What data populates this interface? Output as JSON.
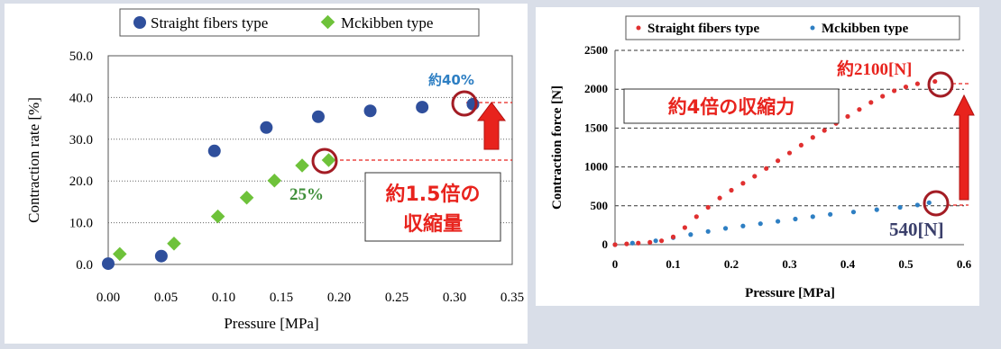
{
  "colors": {
    "left_series1": "#2f4f9c",
    "left_series2": "#6ec23a",
    "right_series1": "#e03030",
    "right_series2": "#2e7fc3",
    "highlight_ring": "#a31c24",
    "arrow": "#e8231d",
    "callout_text": "#e8231d",
    "callout_blue": "#2e7fc3",
    "callout_green": "#3f8f3a",
    "callout_navy": "#3a3f6b"
  },
  "chart_data": [
    {
      "type": "scatter",
      "xlabel": "Pressure [MPa]",
      "ylabel": "Contraction rate [%]",
      "xlim": [
        0,
        0.35
      ],
      "ylim": [
        0,
        50
      ],
      "xticks": [
        "0.00",
        "0.05",
        "0.10",
        "0.15",
        "0.20",
        "0.25",
        "0.30",
        "0.35"
      ],
      "yticks": [
        "0.0",
        "10.0",
        "20.0",
        "30.0",
        "40.0",
        "50.0"
      ],
      "grid": "horizontal dotted",
      "legend": "top",
      "series": [
        {
          "name": "Straight fibers type",
          "marker": "circle",
          "points": [
            [
              0.0,
              0.2
            ],
            [
              0.046,
              2.0
            ],
            [
              0.092,
              27.2
            ],
            [
              0.137,
              32.8
            ],
            [
              0.182,
              35.4
            ],
            [
              0.227,
              36.8
            ],
            [
              0.272,
              37.7
            ],
            [
              0.316,
              38.4
            ]
          ]
        },
        {
          "name": "Mckibben type",
          "marker": "diamond",
          "points": [
            [
              0.01,
              2.5
            ],
            [
              0.057,
              5.0
            ],
            [
              0.095,
              11.5
            ],
            [
              0.12,
              16.0
            ],
            [
              0.144,
              20.1
            ],
            [
              0.168,
              23.7
            ],
            [
              0.191,
              25.0
            ]
          ]
        }
      ],
      "annotations": {
        "top_value": "約40%",
        "mid_value": "25%",
        "ratio_line1": "約1.5倍の",
        "ratio_line2": "収縮量"
      }
    },
    {
      "type": "scatter",
      "xlabel": "Pressure [MPa]",
      "ylabel": "Contraction force [N]",
      "xlim": [
        0,
        0.6
      ],
      "ylim": [
        0,
        2500
      ],
      "xticks": [
        "0",
        "0.1",
        "0.2",
        "0.3",
        "0.4",
        "0.5",
        "0.6"
      ],
      "yticks": [
        "0",
        "500",
        "1000",
        "1500",
        "2000",
        "2500"
      ],
      "grid": "horizontal dashed",
      "legend": "top",
      "series": [
        {
          "name": "Straight fibers type",
          "marker": "dot",
          "points": [
            [
              0.0,
              0
            ],
            [
              0.02,
              10
            ],
            [
              0.04,
              20
            ],
            [
              0.06,
              30
            ],
            [
              0.08,
              50
            ],
            [
              0.1,
              100
            ],
            [
              0.12,
              220
            ],
            [
              0.14,
              360
            ],
            [
              0.16,
              480
            ],
            [
              0.18,
              600
            ],
            [
              0.2,
              700
            ],
            [
              0.22,
              790
            ],
            [
              0.24,
              880
            ],
            [
              0.26,
              980
            ],
            [
              0.28,
              1080
            ],
            [
              0.3,
              1180
            ],
            [
              0.32,
              1280
            ],
            [
              0.34,
              1380
            ],
            [
              0.36,
              1470
            ],
            [
              0.38,
              1560
            ],
            [
              0.4,
              1650
            ],
            [
              0.42,
              1740
            ],
            [
              0.44,
              1830
            ],
            [
              0.46,
              1910
            ],
            [
              0.48,
              1980
            ],
            [
              0.5,
              2030
            ],
            [
              0.52,
              2070
            ],
            [
              0.55,
              2100
            ]
          ]
        },
        {
          "name": "Mckibben type",
          "marker": "dot",
          "points": [
            [
              0.0,
              0
            ],
            [
              0.03,
              20
            ],
            [
              0.07,
              50
            ],
            [
              0.1,
              90
            ],
            [
              0.13,
              130
            ],
            [
              0.16,
              170
            ],
            [
              0.19,
              210
            ],
            [
              0.22,
              240
            ],
            [
              0.25,
              270
            ],
            [
              0.28,
              300
            ],
            [
              0.31,
              330
            ],
            [
              0.34,
              360
            ],
            [
              0.37,
              390
            ],
            [
              0.41,
              420
            ],
            [
              0.45,
              450
            ],
            [
              0.49,
              480
            ],
            [
              0.52,
              510
            ],
            [
              0.54,
              540
            ]
          ]
        }
      ],
      "annotations": {
        "top_value": "約2100[N]",
        "bottom_value": "540[N]",
        "ratio_label": "約4倍の収縮力"
      }
    }
  ]
}
